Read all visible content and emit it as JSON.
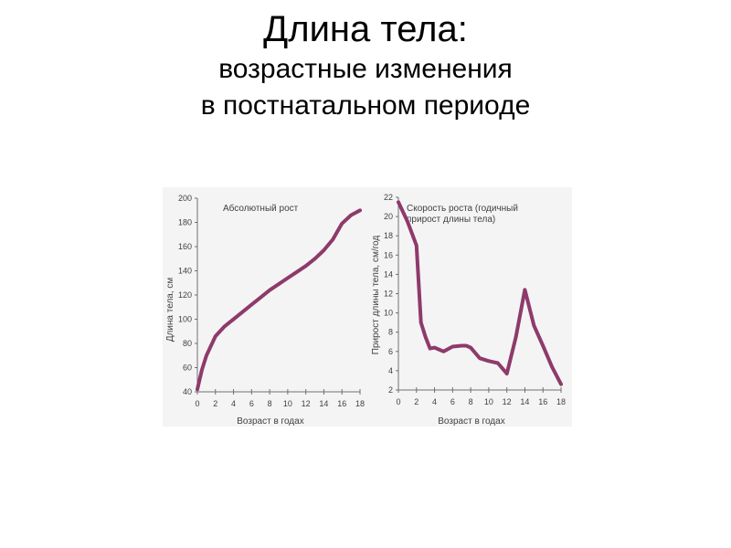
{
  "slide": {
    "title": "Длина тела:",
    "subtitle_line1": "возрастные изменения",
    "subtitle_line2": "в постнатальном периоде"
  },
  "colors": {
    "curve": "#8e3a6b",
    "axis": "#707070",
    "text": "#404040"
  },
  "chart_data": [
    {
      "type": "line",
      "annotation": "Абсолютный рост",
      "xlabel": "Возраст в годах",
      "ylabel": "Длина тела, см",
      "xlim": [
        0,
        18
      ],
      "ylim": [
        40,
        200
      ],
      "xticks": [
        0,
        2,
        4,
        6,
        8,
        10,
        12,
        14,
        16,
        18
      ],
      "yticks": [
        40,
        60,
        80,
        100,
        120,
        140,
        160,
        180,
        200
      ],
      "grid": false,
      "x": [
        0,
        0.5,
        1,
        2,
        3,
        4,
        5,
        6,
        7,
        8,
        9,
        10,
        11,
        12,
        13,
        14,
        15,
        16,
        17,
        18
      ],
      "y": [
        42,
        58,
        70,
        86,
        94,
        100,
        106,
        112,
        118,
        124,
        129,
        134,
        139,
        144,
        150,
        157,
        166,
        179,
        186,
        190
      ]
    },
    {
      "type": "line",
      "annotation_line1": "Скорость роста (годичный",
      "annotation_line2": "прирост длины тела)",
      "xlabel": "Возраст в годах",
      "ylabel": "Прирост длины тела, см/год",
      "xlim": [
        0,
        18
      ],
      "ylim": [
        2,
        22
      ],
      "xticks": [
        0,
        2,
        4,
        6,
        8,
        10,
        12,
        14,
        16,
        18
      ],
      "yticks": [
        2,
        4,
        6,
        8,
        10,
        12,
        14,
        16,
        18,
        20,
        22
      ],
      "grid": false,
      "x": [
        0,
        1,
        2,
        2.5,
        3,
        3.5,
        4,
        5,
        6,
        7,
        7.5,
        8,
        9,
        10,
        11,
        12,
        13,
        14,
        15,
        16,
        17,
        18
      ],
      "y": [
        21.5,
        19.5,
        17,
        9,
        7.5,
        6.3,
        6.4,
        6,
        6.5,
        6.6,
        6.6,
        6.4,
        5.3,
        5,
        4.8,
        3.7,
        7.5,
        12.4,
        8.7,
        6.6,
        4.4,
        2.6
      ]
    }
  ]
}
